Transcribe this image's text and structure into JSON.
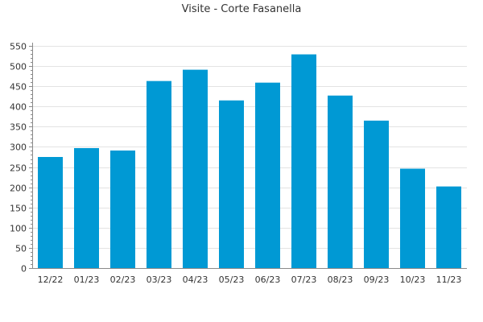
{
  "chart_data": {
    "type": "bar",
    "title": "Visite - Corte Fasanella",
    "xlabel": "",
    "ylabel": "",
    "categories": [
      "12/22",
      "01/23",
      "02/23",
      "03/23",
      "04/23",
      "05/23",
      "06/23",
      "07/23",
      "08/23",
      "09/23",
      "10/23",
      "11/23"
    ],
    "values": [
      275,
      297,
      291,
      463,
      491,
      415,
      459,
      529,
      427,
      365,
      246,
      202
    ],
    "ylim": [
      0,
      550
    ],
    "yticks": [
      0,
      50,
      100,
      150,
      200,
      250,
      300,
      350,
      400,
      450,
      500,
      550
    ],
    "grid": true,
    "legend": "none",
    "colors": {
      "bar": "#0099d4",
      "grid": "#e3e3e3",
      "axis": "#8a8a8a"
    }
  }
}
